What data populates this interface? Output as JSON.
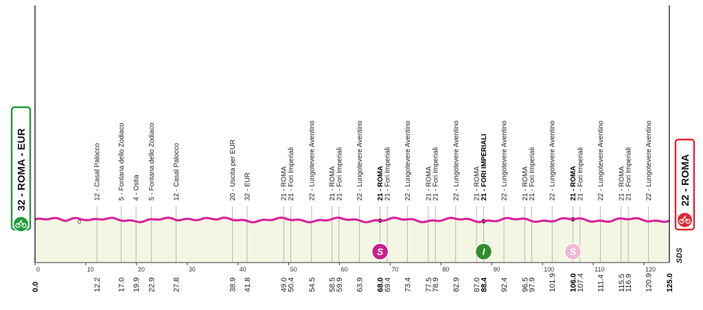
{
  "start": {
    "label": "32 - ROMA - EUR",
    "color": "#1f9a3a"
  },
  "finish": {
    "label": "22 - ROMA",
    "color": "#e3262f"
  },
  "brand": "SDS",
  "chart_data": {
    "type": "line",
    "title": "",
    "xlabel": "",
    "ylabel": "",
    "xlim": [
      0,
      125
    ],
    "x_ticks": [
      0,
      10,
      20,
      30,
      40,
      50,
      60,
      70,
      80,
      90,
      100,
      110,
      120
    ],
    "total_km": 125.0,
    "start_km_label": "0.0",
    "end_km_label": "125.0",
    "altitude_marker": "0",
    "profile_color": "#d6249a",
    "fill_color": "#f3f6e3",
    "checkpoints": [
      {
        "km": 12.2,
        "km_label": "12.2",
        "label": "12 - Casal Palocco",
        "bold": false
      },
      {
        "km": 17.0,
        "km_label": "17.0",
        "label": "5 - Fontana dello Zodiaco",
        "bold": false
      },
      {
        "km": 19.9,
        "km_label": "19.9",
        "label": "4 - Ostia",
        "bold": false
      },
      {
        "km": 22.9,
        "km_label": "22.9",
        "label": "5 - Fontana dello Zodiaco",
        "bold": false
      },
      {
        "km": 27.8,
        "km_label": "27.8",
        "label": "12 - Casal Palocco",
        "bold": false
      },
      {
        "km": 38.9,
        "km_label": "38.9",
        "label": "20 - Uscita per EUR",
        "bold": false
      },
      {
        "km": 41.8,
        "km_label": "41.8",
        "label": "32 - EUR",
        "bold": false
      },
      {
        "km": 49.0,
        "km_label": "49.0",
        "label": "21 - ROMA",
        "bold": false
      },
      {
        "km": 50.4,
        "km_label": "50.4",
        "label": "21 - Fori Imperiali",
        "bold": false
      },
      {
        "km": 54.5,
        "km_label": "54.5",
        "label": "22 - Lungotevere Aventino",
        "bold": false
      },
      {
        "km": 58.5,
        "km_label": "58.5",
        "label": "21 - ROMA",
        "bold": false
      },
      {
        "km": 59.9,
        "km_label": "59.9",
        "label": "21 - Fori Imperiali",
        "bold": false
      },
      {
        "km": 63.9,
        "km_label": "63.9",
        "label": "22 - Lungotevere Aventino",
        "bold": false
      },
      {
        "km": 68.0,
        "km_label": "68.0",
        "label": "21 - ROMA",
        "bold": true
      },
      {
        "km": 69.4,
        "km_label": "69.4",
        "label": "21 - Fori Imperiali",
        "bold": false
      },
      {
        "km": 73.4,
        "km_label": "73.4",
        "label": "22 - Lungotevere Aventino",
        "bold": false
      },
      {
        "km": 77.5,
        "km_label": "77.5",
        "label": "21 - ROMA",
        "bold": false
      },
      {
        "km": 78.9,
        "km_label": "78.9",
        "label": "21 - Fori Imperiali",
        "bold": false
      },
      {
        "km": 82.9,
        "km_label": "82.9",
        "label": "22 - Lungotevere Aventino",
        "bold": false
      },
      {
        "km": 87.0,
        "km_label": "87.0",
        "label": "21 - ROMA",
        "bold": false
      },
      {
        "km": 88.4,
        "km_label": "88.4",
        "label": "21 - FORI IMPERIALI",
        "bold": true
      },
      {
        "km": 92.4,
        "km_label": "92.4",
        "label": "22 - Lungotevere Aventino",
        "bold": false
      },
      {
        "km": 96.5,
        "km_label": "96.5",
        "label": "21 - ROMA",
        "bold": false
      },
      {
        "km": 97.9,
        "km_label": "97.9",
        "label": "21 - Fori Imperiali",
        "bold": false
      },
      {
        "km": 101.9,
        "km_label": "101.9",
        "label": "22 - Lungotevere Aventino",
        "bold": false
      },
      {
        "km": 106.0,
        "km_label": "106.0",
        "label": "21 - ROMA",
        "bold": true
      },
      {
        "km": 107.4,
        "km_label": "107.4",
        "label": "21 - Fori Imperiali",
        "bold": false
      },
      {
        "km": 111.4,
        "km_label": "111.4",
        "label": "22 - Lungotevere Aventino",
        "bold": false
      },
      {
        "km": 115.5,
        "km_label": "115.5",
        "label": "21 - ROMA",
        "bold": false
      },
      {
        "km": 116.9,
        "km_label": "116.9",
        "label": "21 - Fori Imperiali",
        "bold": false
      },
      {
        "km": 120.9,
        "km_label": "120.9",
        "label": "22 - Lungotevere Aventino",
        "bold": false
      }
    ],
    "sprints": [
      {
        "km": 68.0,
        "letter": "S",
        "color": "#c8208a",
        "text_color": "#ffffff"
      },
      {
        "km": 88.4,
        "letter": "I",
        "color": "#2f8f2a",
        "text_color": "#ffffff"
      },
      {
        "km": 106.0,
        "letter": "S",
        "color": "#f2b8d4",
        "text_color": "#ffffff"
      }
    ]
  }
}
